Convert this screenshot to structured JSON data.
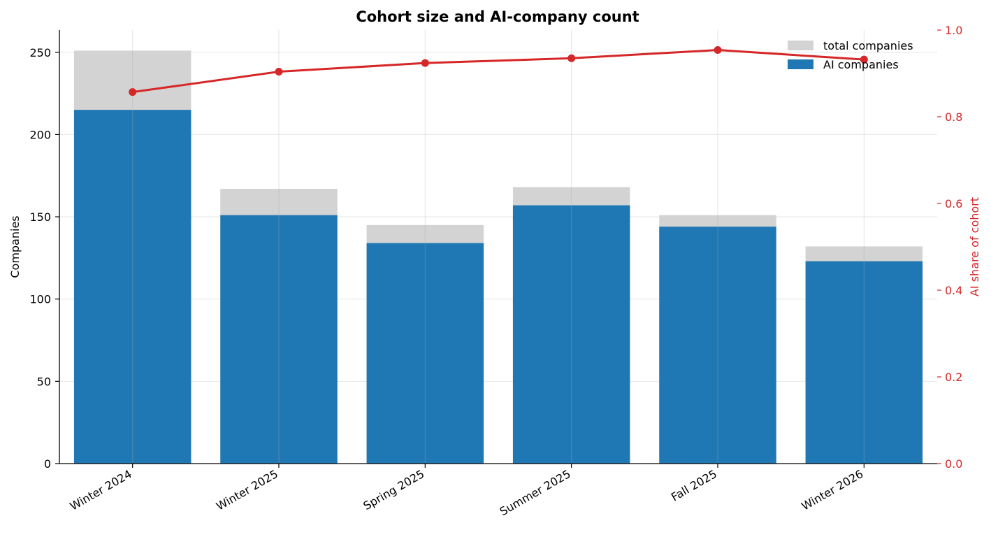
{
  "chart_data": {
    "type": "bar",
    "title": "Cohort size and AI-company count",
    "xlabel": "",
    "ylabel": "Companies",
    "y2label": "AI share of cohort",
    "categories": [
      "Winter 2024",
      "Winter 2025",
      "Spring 2025",
      "Summer 2025",
      "Fall 2025",
      "Winter 2026"
    ],
    "series": [
      {
        "name": "total companies",
        "kind": "bar",
        "axis": "left",
        "color": "#d3d3d3",
        "values": [
          251,
          167,
          145,
          168,
          151,
          132
        ]
      },
      {
        "name": "AI companies",
        "kind": "bar",
        "axis": "left",
        "color": "#1f77b4",
        "values": [
          215,
          151,
          134,
          157,
          144,
          123
        ]
      },
      {
        "kind": "line",
        "axis": "right",
        "color": "#d62728",
        "values": [
          0.857,
          0.904,
          0.924,
          0.935,
          0.954,
          0.932
        ]
      }
    ],
    "ylim": [
      0,
      263.5
    ],
    "y2lim": [
      0,
      1.0
    ],
    "yticks": [
      "0",
      "50",
      "100",
      "150",
      "200",
      "250"
    ],
    "y2ticks": [
      "0.0",
      "0.2",
      "0.4",
      "0.6",
      "0.8",
      "1.0"
    ],
    "grid": true,
    "legend_position": "top-right",
    "colors": {
      "left_axis": "#000000",
      "right_axis": "#d62728",
      "grid": "#e6e6e6"
    }
  }
}
